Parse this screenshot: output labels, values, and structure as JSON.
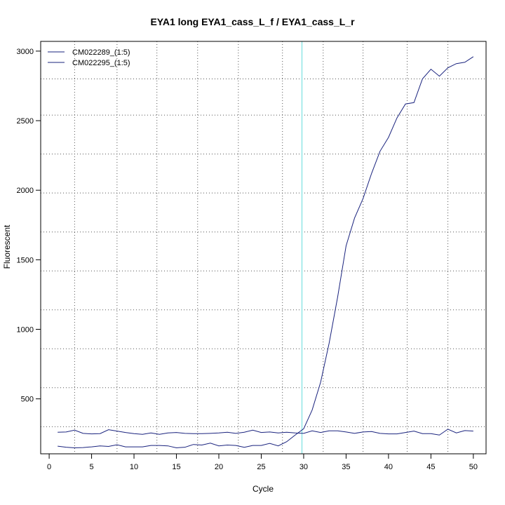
{
  "chart_data": {
    "type": "line",
    "title": "EYA1 long EYA1_cass_L_f / EYA1_cass_L_r",
    "xlabel": "Cycle",
    "ylabel": "Fluorescent",
    "xlim": [
      -1,
      51.5
    ],
    "ylim": [
      105,
      3070
    ],
    "x_ticks": [
      0,
      5,
      10,
      15,
      20,
      25,
      30,
      35,
      40,
      45,
      50
    ],
    "y_ticks": [
      500,
      1000,
      1500,
      2000,
      2500,
      3000
    ],
    "grid": true,
    "grid_style": "dotted",
    "grid_x": [
      3,
      8,
      12.7,
      17.5,
      22.3,
      27.5,
      32.3,
      37,
      42.2,
      47
    ],
    "grid_y": [
      300,
      580,
      860,
      1140,
      1420,
      1700,
      1980,
      2260,
      2540,
      2800
    ],
    "threshold_cycle": 29.8,
    "threshold_color": "#66dddd",
    "legend_position": "top-left",
    "series": [
      {
        "name": "CM022289_(1:5)",
        "color": "#1a237e",
        "x": [
          1,
          2,
          3,
          4,
          5,
          6,
          7,
          8,
          9,
          10,
          11,
          12,
          13,
          14,
          15,
          16,
          17,
          18,
          19,
          20,
          21,
          22,
          23,
          24,
          25,
          26,
          27,
          28,
          29,
          30,
          31,
          32,
          33,
          34,
          35,
          36,
          37,
          38,
          39,
          40,
          41,
          42,
          43,
          44,
          45,
          46,
          47,
          48,
          49,
          50
        ],
        "values": [
          260,
          262,
          275,
          252,
          248,
          250,
          278,
          268,
          258,
          250,
          245,
          255,
          245,
          255,
          258,
          252,
          250,
          250,
          252,
          255,
          260,
          252,
          260,
          275,
          258,
          262,
          255,
          260,
          255,
          252,
          270,
          258,
          270,
          270,
          262,
          252,
          262,
          265,
          252,
          248,
          248,
          258,
          268,
          250,
          250,
          240,
          282,
          255,
          272,
          268
        ]
      },
      {
        "name": "CM022295_(1:5)",
        "color": "#1a237e",
        "x": [
          1,
          2,
          3,
          4,
          5,
          6,
          7,
          8,
          9,
          10,
          11,
          12,
          13,
          14,
          15,
          16,
          17,
          18,
          19,
          20,
          21,
          22,
          23,
          24,
          25,
          26,
          27,
          28,
          29,
          30,
          31,
          32,
          33,
          34,
          35,
          36,
          37,
          38,
          39,
          40,
          41,
          42,
          43,
          44,
          45,
          46,
          47,
          48,
          49,
          50
        ],
        "values": [
          160,
          152,
          148,
          150,
          155,
          162,
          158,
          170,
          155,
          155,
          155,
          165,
          165,
          162,
          148,
          152,
          172,
          168,
          182,
          162,
          168,
          165,
          152,
          165,
          165,
          180,
          162,
          192,
          240,
          285,
          420,
          620,
          900,
          1230,
          1600,
          1800,
          1940,
          2120,
          2280,
          2380,
          2520,
          2620,
          2630,
          2800,
          2870,
          2820,
          2880,
          2910,
          2920,
          2960
        ]
      }
    ]
  }
}
